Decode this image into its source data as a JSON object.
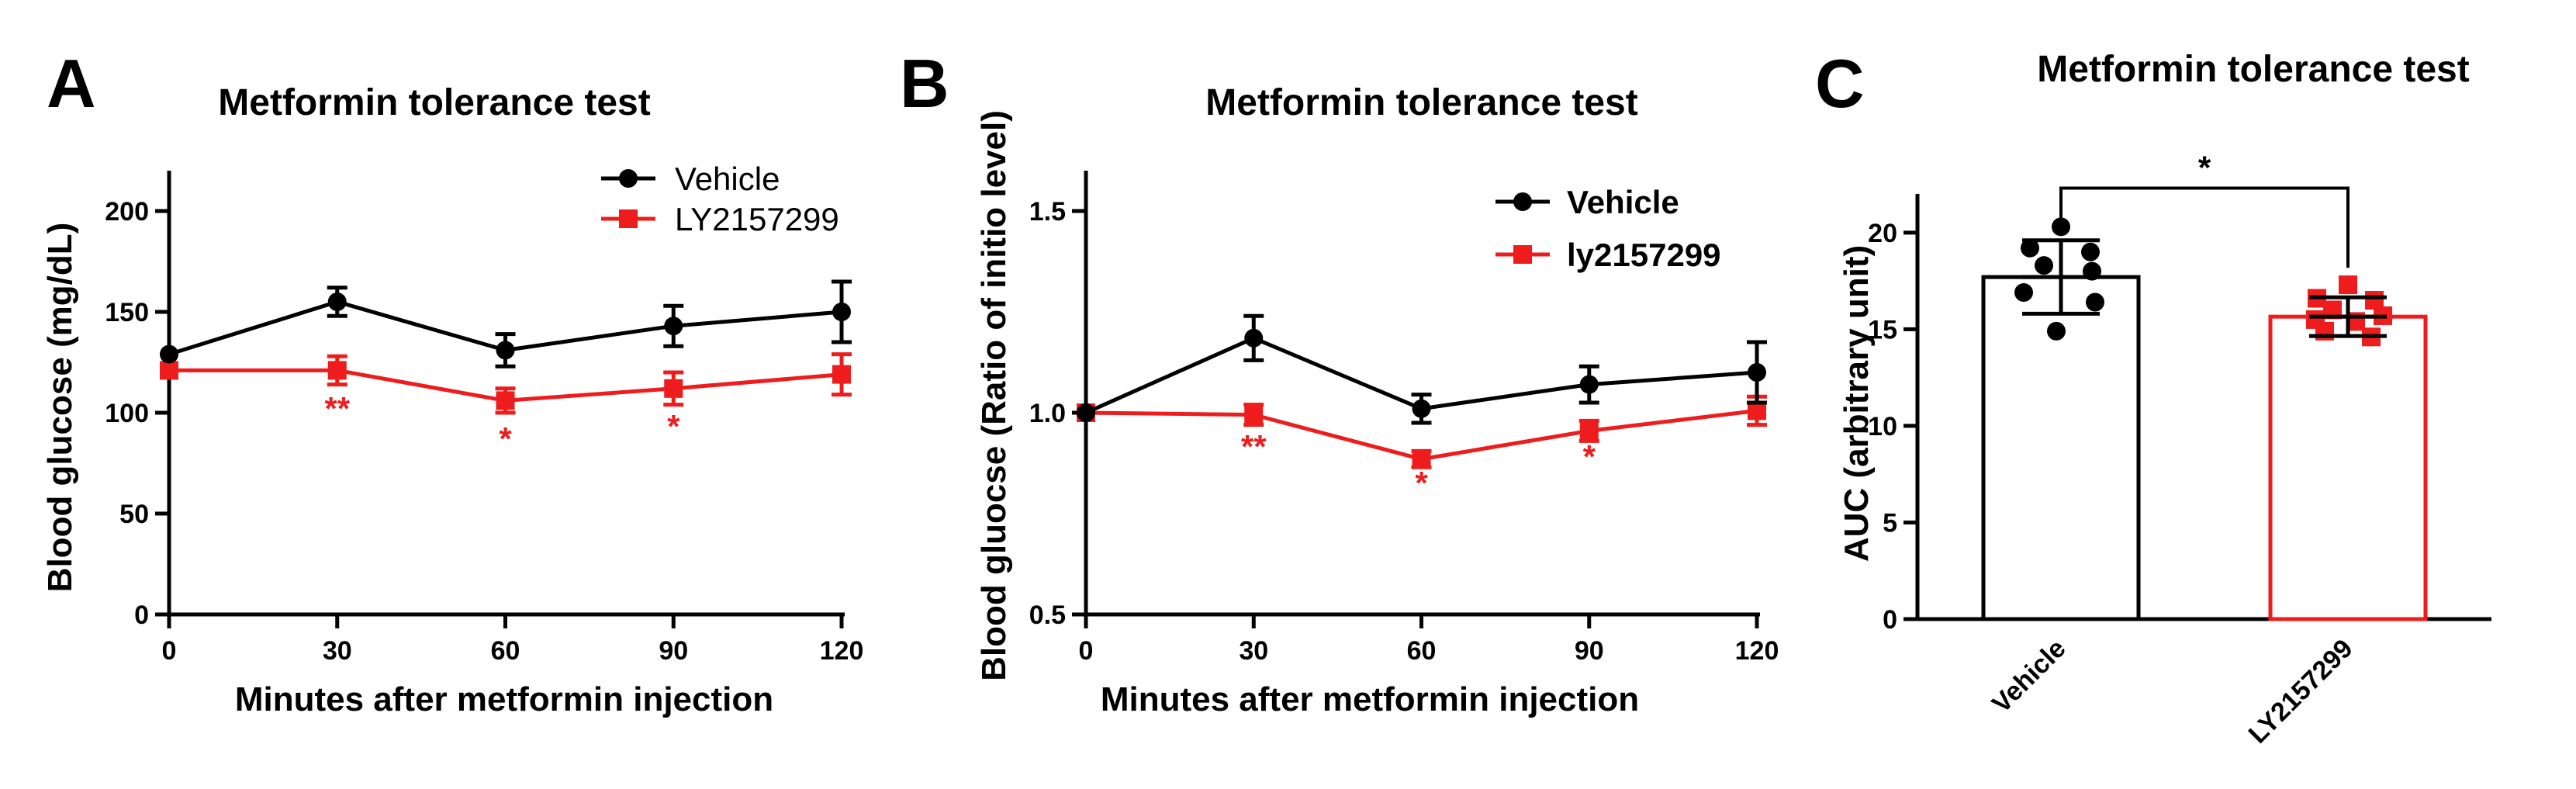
{
  "colors": {
    "vehicle": "#000000",
    "treated": "#ee1c1c"
  },
  "chart_data": [
    {
      "panel": "A",
      "type": "line",
      "title": "Metformin tolerance test",
      "xlabel": "Minutes after metformin injection",
      "ylabel": "Blood glucose (mg/dL)",
      "x": [
        0,
        30,
        60,
        90,
        120
      ],
      "xticks": [
        "0",
        "30",
        "60",
        "90",
        "120"
      ],
      "xlim": [
        0,
        120
      ],
      "ylim": [
        0,
        220
      ],
      "yticks": [
        0,
        50,
        100,
        150,
        200
      ],
      "ytick_labels": [
        "0",
        "50",
        "100",
        "150",
        "200"
      ],
      "series": [
        {
          "name": "Vehicle",
          "color": "#000000",
          "marker": "circle",
          "values": [
            129,
            155,
            131,
            143,
            150
          ],
          "errors": [
            0,
            7,
            8,
            10,
            15
          ]
        },
        {
          "name": "LY2157299",
          "color": "#ee1c1c",
          "marker": "square",
          "values": [
            121,
            121,
            106,
            112,
            119
          ],
          "errors": [
            0,
            7,
            6,
            8,
            10
          ]
        }
      ],
      "significance": [
        {
          "x": 30,
          "y": 102,
          "label": "**"
        },
        {
          "x": 60,
          "y": 87,
          "label": "*"
        },
        {
          "x": 90,
          "y": 93,
          "label": "*"
        }
      ],
      "legend": {
        "position": "top-right",
        "bold": false
      }
    },
    {
      "panel": "B",
      "type": "line",
      "title": "Metformin tolerance test",
      "xlabel": "Minutes after metformin injection",
      "ylabel": "Blood gluocse (Ratio of initio level)",
      "x": [
        0,
        30,
        60,
        90,
        120
      ],
      "xticks": [
        "0",
        "30",
        "60",
        "90",
        "120"
      ],
      "xlim": [
        0,
        120
      ],
      "ylim": [
        0.5,
        1.6
      ],
      "yticks": [
        0.5,
        1.0,
        1.5
      ],
      "ytick_labels": [
        "0.5",
        "1.0",
        "1.5"
      ],
      "series": [
        {
          "name": "Vehicle",
          "color": "#000000",
          "marker": "circle",
          "values": [
            1.0,
            1.185,
            1.01,
            1.07,
            1.1
          ],
          "errors": [
            0,
            0.055,
            0.035,
            0.045,
            0.075
          ]
        },
        {
          "name": "ly2157299",
          "color": "#ee1c1c",
          "marker": "square",
          "values": [
            1.0,
            0.995,
            0.885,
            0.955,
            1.005
          ],
          "errors": [
            0,
            0.025,
            0.02,
            0.025,
            0.035
          ]
        }
      ],
      "significance": [
        {
          "x": 30,
          "y": 0.915,
          "label": "**"
        },
        {
          "x": 60,
          "y": 0.825,
          "label": "*"
        },
        {
          "x": 90,
          "y": 0.89,
          "label": "*"
        }
      ],
      "legend": {
        "position": "top-right",
        "bold": true
      }
    },
    {
      "panel": "C",
      "type": "bar",
      "title": "Metformin tolerance test",
      "ylabel": "AUC (arbitrary unit)",
      "categories": [
        "Vehicle",
        "LY2157299"
      ],
      "values": [
        17.7,
        15.65
      ],
      "errors": [
        1.9,
        1.0
      ],
      "colors": [
        "#000000",
        "#ee1c1c"
      ],
      "points": [
        [
          20.3,
          19.2,
          19.0,
          18.3,
          18.0,
          16.9,
          16.4,
          14.9
        ],
        [
          17.3,
          16.6,
          16.5,
          16.0,
          15.7,
          15.5,
          15.4,
          14.9,
          14.6
        ]
      ],
      "ylim": [
        0,
        22
      ],
      "yticks": [
        0,
        5,
        10,
        15,
        20
      ],
      "ytick_labels": [
        "0",
        "5",
        "10",
        "15",
        "20"
      ],
      "significance": {
        "label": "*",
        "y": 22.3
      }
    }
  ]
}
